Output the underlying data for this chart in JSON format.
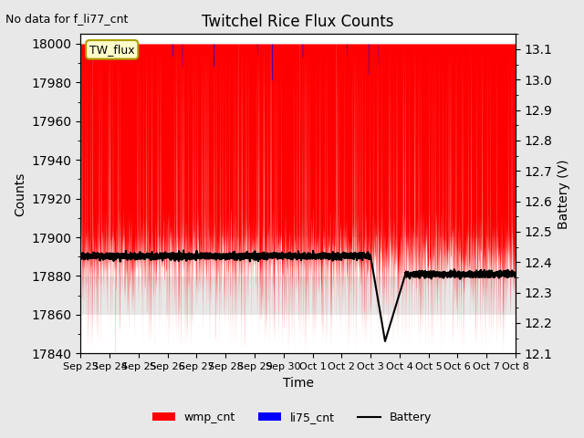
{
  "title": "Twitchel Rice Flux Counts",
  "no_data_label": "No data for f_li77_cnt",
  "site_label": "TW_flux",
  "xlabel": "Time",
  "ylabel_left": "Counts",
  "ylabel_right": "Battery (V)",
  "ylim_left": [
    17840,
    18005
  ],
  "ylim_right": [
    12.1,
    13.15
  ],
  "yticks_left": [
    17840,
    17860,
    17880,
    17900,
    17920,
    17940,
    17960,
    17980,
    18000
  ],
  "yticks_right": [
    12.1,
    12.2,
    12.3,
    12.4,
    12.5,
    12.6,
    12.7,
    12.8,
    12.9,
    13.0,
    13.1
  ],
  "xtick_labels": [
    "Sep 23",
    "Sep 24",
    "Sep 25",
    "Sep 26",
    "Sep 27",
    "Sep 28",
    "Sep 29",
    "Sep 30",
    "Oct 1",
    "Oct 2",
    "Oct 3",
    "Oct 4",
    "Oct 5",
    "Oct 6",
    "Oct 7",
    "Oct 8"
  ],
  "wmp_color": "#ff0000",
  "li75_color": "#0000ff",
  "battery_color": "#000000",
  "background_color": "#e8e8e8",
  "plot_bg_color": "#ffffff",
  "grid_color_light": "#ffffff",
  "grid_color_dark": "#dcdcdc",
  "seed": 42,
  "n_days": 15,
  "n_points_per_day": 288
}
